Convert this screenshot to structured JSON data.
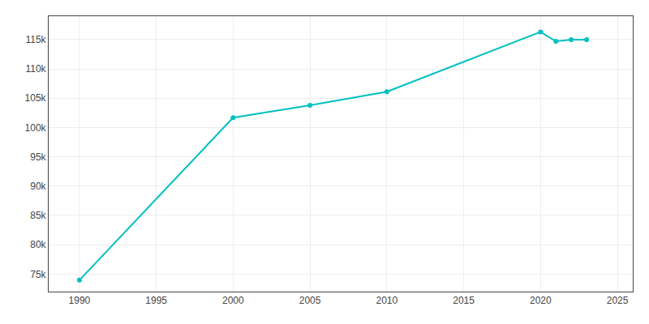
{
  "chart_data": {
    "type": "line",
    "x": [
      1990,
      2000,
      2005,
      2010,
      2020,
      2021,
      2022,
      2023
    ],
    "values": [
      73958,
      101687,
      103800,
      106114,
      116317,
      114714,
      115000,
      115000
    ],
    "color": "#00C0C0",
    "marker": "circle",
    "xlim": [
      1988,
      2026
    ],
    "xticks": [
      1990,
      1995,
      2000,
      2005,
      2010,
      2015,
      2020,
      2025
    ],
    "ylim": [
      72000,
      119000
    ],
    "yticks": [
      {
        "value": 75000,
        "label": "75k"
      },
      {
        "value": 80000,
        "label": "80k"
      },
      {
        "value": 85000,
        "label": "85k"
      },
      {
        "value": 90000,
        "label": "90k"
      },
      {
        "value": 95000,
        "label": "95k"
      },
      {
        "value": 100000,
        "label": "100k"
      },
      {
        "value": 105000,
        "label": "105k"
      },
      {
        "value": 110000,
        "label": "110k"
      },
      {
        "value": 115000,
        "label": "115k"
      }
    ],
    "grid": true
  }
}
